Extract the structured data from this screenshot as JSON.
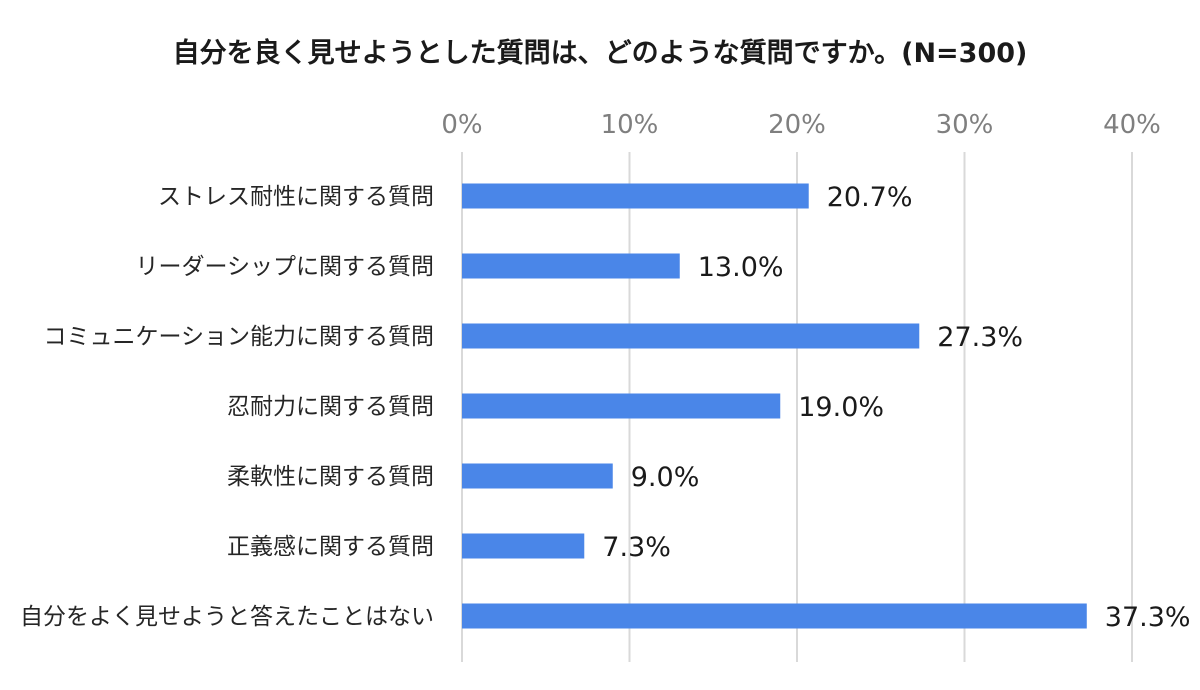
{
  "chart_data": {
    "type": "bar",
    "orientation": "horizontal",
    "title": "自分を良く見せようとした質問は、どのような質問ですか。(N=300)",
    "categories": [
      "ストレス耐性に関する質問",
      "リーダーシップに関する質問",
      "コミュニケーション能力に関する質問",
      "忍耐力に関する質問",
      "柔軟性に関する質問",
      "正義感に関する質問",
      "自分をよく見せようと答えたことはない"
    ],
    "values": [
      20.7,
      13.0,
      27.3,
      19.0,
      9.0,
      7.3,
      37.3
    ],
    "value_labels": [
      "20.7%",
      "13.0%",
      "27.3%",
      "19.0%",
      "9.0%",
      "7.3%",
      "37.3%"
    ],
    "xlim": [
      0,
      40
    ],
    "x_ticks": [
      0,
      10,
      20,
      30,
      40
    ],
    "x_tick_labels": [
      "0%",
      "10%",
      "20%",
      "30%",
      "40%"
    ],
    "x_axis_position": "top",
    "grid": true,
    "legend": "none",
    "bar_color": "#4a86e8",
    "grid_color": "#d9d9d9"
  }
}
